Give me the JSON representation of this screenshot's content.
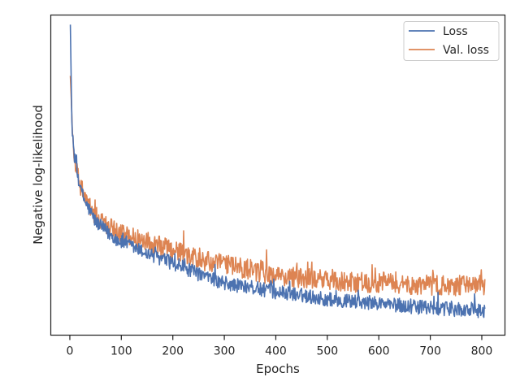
{
  "chart_data": {
    "type": "line",
    "xlabel": "Epochs",
    "ylabel": "Negative log-likelihood",
    "xlim": [
      -37,
      845
    ],
    "ylim": [
      0.0,
      1.0
    ],
    "x_ticks": [
      0,
      100,
      200,
      300,
      400,
      500,
      600,
      700,
      800
    ],
    "y_ticks": [],
    "y_ticks_shown": false,
    "grid": false,
    "legend_position": "top-right",
    "n_points": 806,
    "x_range": [
      1,
      806
    ],
    "series": [
      {
        "name": "Loss",
        "color": "#4c72b0",
        "noise_amplitude": 0.022,
        "anchors": [
          [
            1,
            0.97
          ],
          [
            3,
            0.76
          ],
          [
            5,
            0.62
          ],
          [
            10,
            0.545
          ],
          [
            20,
            0.46
          ],
          [
            30,
            0.415
          ],
          [
            50,
            0.355
          ],
          [
            75,
            0.318
          ],
          [
            100,
            0.29
          ],
          [
            150,
            0.255
          ],
          [
            200,
            0.225
          ],
          [
            250,
            0.19
          ],
          [
            300,
            0.16
          ],
          [
            350,
            0.15
          ],
          [
            400,
            0.135
          ],
          [
            450,
            0.125
          ],
          [
            500,
            0.112
          ],
          [
            550,
            0.105
          ],
          [
            600,
            0.1
          ],
          [
            650,
            0.09
          ],
          [
            700,
            0.085
          ],
          [
            750,
            0.08
          ],
          [
            806,
            0.075
          ]
        ]
      },
      {
        "name": "Val. loss",
        "color": "#dd8452",
        "noise_amplitude": 0.032,
        "anchors": [
          [
            1,
            0.81
          ],
          [
            3,
            0.73
          ],
          [
            5,
            0.62
          ],
          [
            10,
            0.545
          ],
          [
            20,
            0.47
          ],
          [
            30,
            0.425
          ],
          [
            50,
            0.37
          ],
          [
            75,
            0.34
          ],
          [
            100,
            0.315
          ],
          [
            150,
            0.29
          ],
          [
            200,
            0.265
          ],
          [
            250,
            0.235
          ],
          [
            300,
            0.22
          ],
          [
            350,
            0.205
          ],
          [
            400,
            0.185
          ],
          [
            450,
            0.18
          ],
          [
            500,
            0.17
          ],
          [
            550,
            0.165
          ],
          [
            600,
            0.165
          ],
          [
            650,
            0.16
          ],
          [
            700,
            0.155
          ],
          [
            750,
            0.155
          ],
          [
            806,
            0.155
          ]
        ]
      }
    ]
  },
  "colors": {
    "axes": "#262626",
    "background": "#ffffff"
  }
}
